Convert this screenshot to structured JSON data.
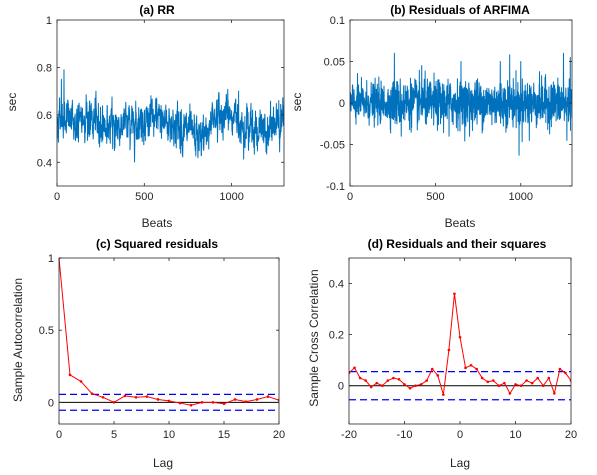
{
  "colors": {
    "series_blue": "#0072bd",
    "acf_red": "#ff0000",
    "bound_blue": "#0000ff",
    "axis": "#262626",
    "zero": "#000000"
  },
  "chart_data": [
    {
      "id": "a",
      "type": "line",
      "title": "(a) RR",
      "xlabel": "Beats",
      "ylabel": "sec",
      "xlim": [
        0,
        1300
      ],
      "ylim": [
        0.3,
        1.0
      ],
      "xticks": [
        0,
        500,
        1000
      ],
      "xtick_labels": [
        "0",
        "500",
        "1000"
      ],
      "yticks": [
        0.4,
        0.6,
        0.8,
        1.0
      ],
      "ytick_labels": [
        "0.4",
        "0.6",
        "0.8",
        "1"
      ],
      "series": [
        {
          "n": 1300,
          "generated": "rr",
          "anchors": [
            [
              0,
              0.56
            ],
            [
              20,
              0.6
            ],
            [
              50,
              0.6
            ],
            [
              80,
              0.58
            ],
            [
              120,
              0.55
            ],
            [
              160,
              0.6
            ],
            [
              200,
              0.57
            ],
            [
              300,
              0.55
            ],
            [
              400,
              0.56
            ],
            [
              500,
              0.58
            ],
            [
              600,
              0.58
            ],
            [
              700,
              0.55
            ],
            [
              800,
              0.5
            ],
            [
              840,
              0.5
            ],
            [
              900,
              0.6
            ],
            [
              1000,
              0.6
            ],
            [
              1100,
              0.55
            ],
            [
              1200,
              0.52
            ],
            [
              1300,
              0.6
            ]
          ],
          "noise_amp": 0.045,
          "spikes": [
            [
              40,
              0.79
            ],
            [
              25,
              0.75
            ],
            [
              120,
              0.64
            ],
            [
              305,
              0.48
            ],
            [
              840,
              0.45
            ],
            [
              1040,
              0.7
            ],
            [
              1120,
              0.62
            ],
            [
              1270,
              0.66
            ],
            [
              1210,
              0.47
            ]
          ]
        }
      ]
    },
    {
      "id": "b",
      "type": "line",
      "title": "(b) Residuals of ARFIMA",
      "xlabel": "Beats",
      "ylabel": "sec",
      "xlim": [
        0,
        1300
      ],
      "ylim": [
        -0.1,
        0.1
      ],
      "xticks": [
        0,
        500,
        1000
      ],
      "xtick_labels": [
        "0",
        "500",
        "1000"
      ],
      "yticks": [
        -0.1,
        -0.05,
        0,
        0.05,
        0.1
      ],
      "ytick_labels": [
        "-0.1",
        "-0.05",
        "0",
        "0.05",
        "0.1"
      ],
      "series": [
        {
          "n": 1300,
          "generated": "residuals",
          "noise_amp": 0.012,
          "spikes": [
            [
              260,
              0.06
            ],
            [
              300,
              -0.04
            ],
            [
              420,
              0.045
            ],
            [
              580,
              -0.04
            ],
            [
              650,
              0.05
            ],
            [
              700,
              -0.04
            ],
            [
              880,
              0.05
            ],
            [
              935,
              0.058
            ],
            [
              990,
              -0.063
            ],
            [
              1000,
              0.05
            ],
            [
              1050,
              -0.045
            ],
            [
              1250,
              0.06
            ],
            [
              1270,
              -0.045
            ],
            [
              1290,
              0.055
            ]
          ]
        }
      ]
    },
    {
      "id": "c",
      "type": "line",
      "title": "(c) Squared residuals",
      "xlabel": "Lag",
      "ylabel": "Sample Autocorrelation",
      "xlim": [
        0,
        20
      ],
      "ylim": [
        -0.15,
        1.0
      ],
      "xticks": [
        0,
        5,
        10,
        15,
        20
      ],
      "xtick_labels": [
        "0",
        "5",
        "10",
        "15",
        "20"
      ],
      "yticks": [
        0,
        0.5,
        1.0
      ],
      "ytick_labels": [
        "0",
        "0.5",
        "1"
      ],
      "bounds": [
        0.055,
        -0.055
      ],
      "series": [
        {
          "x": [
            0,
            1,
            2,
            3,
            4,
            5,
            6,
            7,
            8,
            9,
            10,
            11,
            12,
            13,
            14,
            15,
            16,
            17,
            18,
            19,
            20
          ],
          "y": [
            1.0,
            0.19,
            0.145,
            0.06,
            0.035,
            0.0,
            0.045,
            0.035,
            0.04,
            0.02,
            0.01,
            -0.005,
            -0.02,
            0.0,
            0.0,
            -0.01,
            0.02,
            0.005,
            0.02,
            0.04,
            0.015
          ]
        }
      ]
    },
    {
      "id": "d",
      "type": "line",
      "title": "(d) Residuals and their squares",
      "xlabel": "Lag",
      "ylabel": "Sample Cross Correlation",
      "xlim": [
        -20,
        20
      ],
      "ylim": [
        -0.15,
        0.5
      ],
      "xticks": [
        -20,
        -10,
        0,
        10,
        20
      ],
      "xtick_labels": [
        "-20",
        "-10",
        "0",
        "10",
        "20"
      ],
      "yticks": [
        0,
        0.2,
        0.4
      ],
      "ytick_labels": [
        "0",
        "0.2",
        "0.4"
      ],
      "bounds": [
        0.055,
        -0.055
      ],
      "series": [
        {
          "x": [
            -20,
            -19,
            -18,
            -17,
            -16,
            -15,
            -14,
            -13,
            -12,
            -11,
            -10,
            -9,
            -8,
            -7,
            -6,
            -5,
            -4,
            -3,
            -2,
            -1,
            0,
            1,
            2,
            3,
            4,
            5,
            6,
            7,
            8,
            9,
            10,
            11,
            12,
            13,
            14,
            15,
            16,
            17,
            18,
            19,
            20
          ],
          "y": [
            0.05,
            0.07,
            0.03,
            0.02,
            -0.005,
            0.01,
            0.0,
            0.02,
            0.03,
            0.025,
            0.005,
            -0.01,
            0.0,
            0.005,
            0.02,
            0.065,
            0.04,
            -0.035,
            0.14,
            0.36,
            0.19,
            0.07,
            0.08,
            0.065,
            0.03,
            0.015,
            0.02,
            0.0,
            0.01,
            -0.03,
            0.005,
            0.0,
            0.02,
            0.01,
            0.03,
            0.0,
            0.03,
            -0.03,
            0.065,
            0.05,
            0.02
          ]
        }
      ]
    }
  ]
}
